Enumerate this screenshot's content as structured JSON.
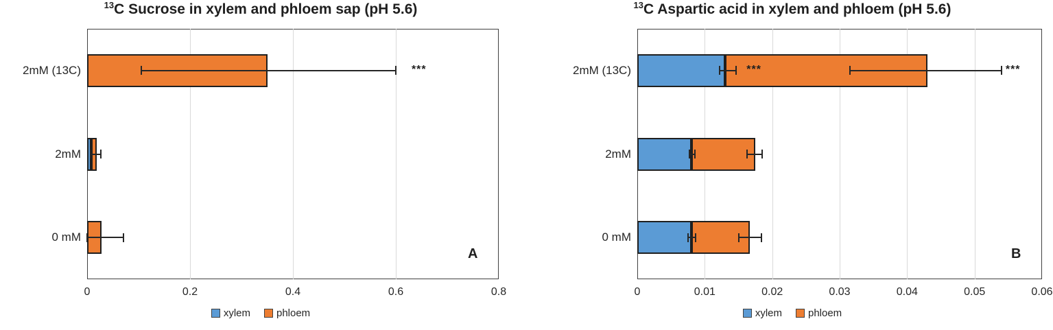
{
  "chart_data": [
    {
      "type": "bar",
      "orientation": "horizontal-stacked",
      "panel_label": "A",
      "title_superscript": "13",
      "title_text": "C Sucrose in xylem and phloem sap (pH 5.6)",
      "categories": [
        "2mM (13C)",
        "2mM",
        "0 mM"
      ],
      "series": [
        {
          "name": "xylem",
          "color": "#5B9BD5",
          "values": [
            0,
            0.008,
            0
          ]
        },
        {
          "name": "phloem",
          "color": "#ED7D31",
          "values": [
            0.35,
            0.01,
            0.028
          ]
        }
      ],
      "xlim": [
        0,
        0.8
      ],
      "x_ticks": [
        0,
        0.2,
        0.4,
        0.6,
        0.8
      ],
      "x_tick_labels": [
        "0",
        "0.2",
        "0.4",
        "0.6",
        "0.8"
      ],
      "grid": "vertical",
      "error_bars": [
        {
          "row": 0,
          "from": 0.105,
          "to": 0.6
        },
        {
          "row": 1,
          "from": 0.007,
          "to": 0.027
        },
        {
          "row": 2,
          "from": 0.0,
          "to": 0.071
        }
      ],
      "sig_markers": [
        {
          "row": 0,
          "value": 0.645,
          "label": "***"
        }
      ],
      "legend": [
        {
          "label": "xylem",
          "color": "#5B9BD5"
        },
        {
          "label": "phloem",
          "color": "#ED7D31"
        }
      ],
      "legend_position": "bottom"
    },
    {
      "type": "bar",
      "orientation": "horizontal-stacked",
      "panel_label": "B",
      "title_superscript": "13",
      "title_text": "C Aspartic acid in xylem and phloem (pH 5.6)",
      "categories": [
        "2mM (13C)",
        "2mM",
        "0 mM"
      ],
      "series": [
        {
          "name": "xylem",
          "color": "#5B9BD5",
          "values": [
            0.013,
            0.008,
            0.008
          ]
        },
        {
          "name": "phloem",
          "color": "#ED7D31",
          "values": [
            0.03,
            0.0095,
            0.0087
          ]
        }
      ],
      "xlim": [
        0,
        0.06
      ],
      "x_ticks": [
        0,
        0.01,
        0.02,
        0.03,
        0.04,
        0.05,
        0.06
      ],
      "x_tick_labels": [
        "0",
        "0.01",
        "0.02",
        "0.03",
        "0.04",
        "0.05",
        "0.06"
      ],
      "grid": "vertical",
      "error_bars": [
        {
          "row": 0,
          "from": 0.0122,
          "to": 0.0146
        },
        {
          "row": 0,
          "from": 0.0315,
          "to": 0.054
        },
        {
          "row": 1,
          "from": 0.0077,
          "to": 0.0085
        },
        {
          "row": 1,
          "from": 0.0163,
          "to": 0.0185
        },
        {
          "row": 2,
          "from": 0.0075,
          "to": 0.0086
        },
        {
          "row": 2,
          "from": 0.015,
          "to": 0.0184
        }
      ],
      "sig_markers": [
        {
          "row": 0,
          "value": 0.0173,
          "label": "***"
        },
        {
          "row": 0,
          "value": 0.0557,
          "label": "***"
        }
      ],
      "legend": [
        {
          "label": "xylem",
          "color": "#5B9BD5"
        },
        {
          "label": "phloem",
          "color": "#ED7D31"
        }
      ],
      "legend_position": "bottom"
    }
  ]
}
